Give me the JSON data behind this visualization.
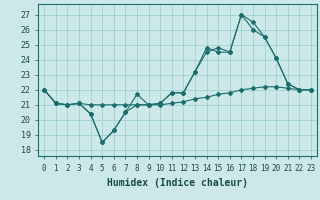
{
  "xlabel": "Humidex (Indice chaleur)",
  "background_color": "#cce8e8",
  "grid_color": "#99cccc",
  "line_color": "#1a6e6e",
  "x_ticks": [
    0,
    1,
    2,
    3,
    4,
    5,
    6,
    7,
    8,
    9,
    10,
    11,
    12,
    13,
    14,
    15,
    16,
    17,
    18,
    19,
    20,
    21,
    22,
    23
  ],
  "y_ticks": [
    18,
    19,
    20,
    21,
    22,
    23,
    24,
    25,
    26,
    27
  ],
  "ylim": [
    17.6,
    27.7
  ],
  "xlim": [
    -0.5,
    23.5
  ],
  "series1": [
    22,
    21.1,
    21.0,
    21.1,
    20.4,
    18.5,
    19.3,
    20.5,
    21.7,
    21.0,
    21.1,
    21.8,
    21.8,
    23.2,
    24.8,
    24.5,
    24.5,
    27.0,
    26.0,
    25.5,
    24.1,
    22.4,
    22.0,
    22.0
  ],
  "series2": [
    22,
    21.1,
    21.0,
    21.1,
    20.4,
    18.5,
    19.3,
    20.5,
    21.0,
    21.0,
    21.1,
    21.8,
    21.8,
    23.2,
    24.5,
    24.8,
    24.5,
    27.0,
    26.5,
    25.5,
    24.1,
    22.4,
    22.0,
    22.0
  ],
  "series3": [
    22,
    21.1,
    21.0,
    21.1,
    21.0,
    21.0,
    21.0,
    21.0,
    21.0,
    21.0,
    21.0,
    21.1,
    21.2,
    21.4,
    21.5,
    21.7,
    21.8,
    22.0,
    22.1,
    22.2,
    22.2,
    22.1,
    22.0,
    22.0
  ],
  "title_fontsize": 7,
  "xlabel_fontsize": 7,
  "tick_fontsize": 5.5
}
